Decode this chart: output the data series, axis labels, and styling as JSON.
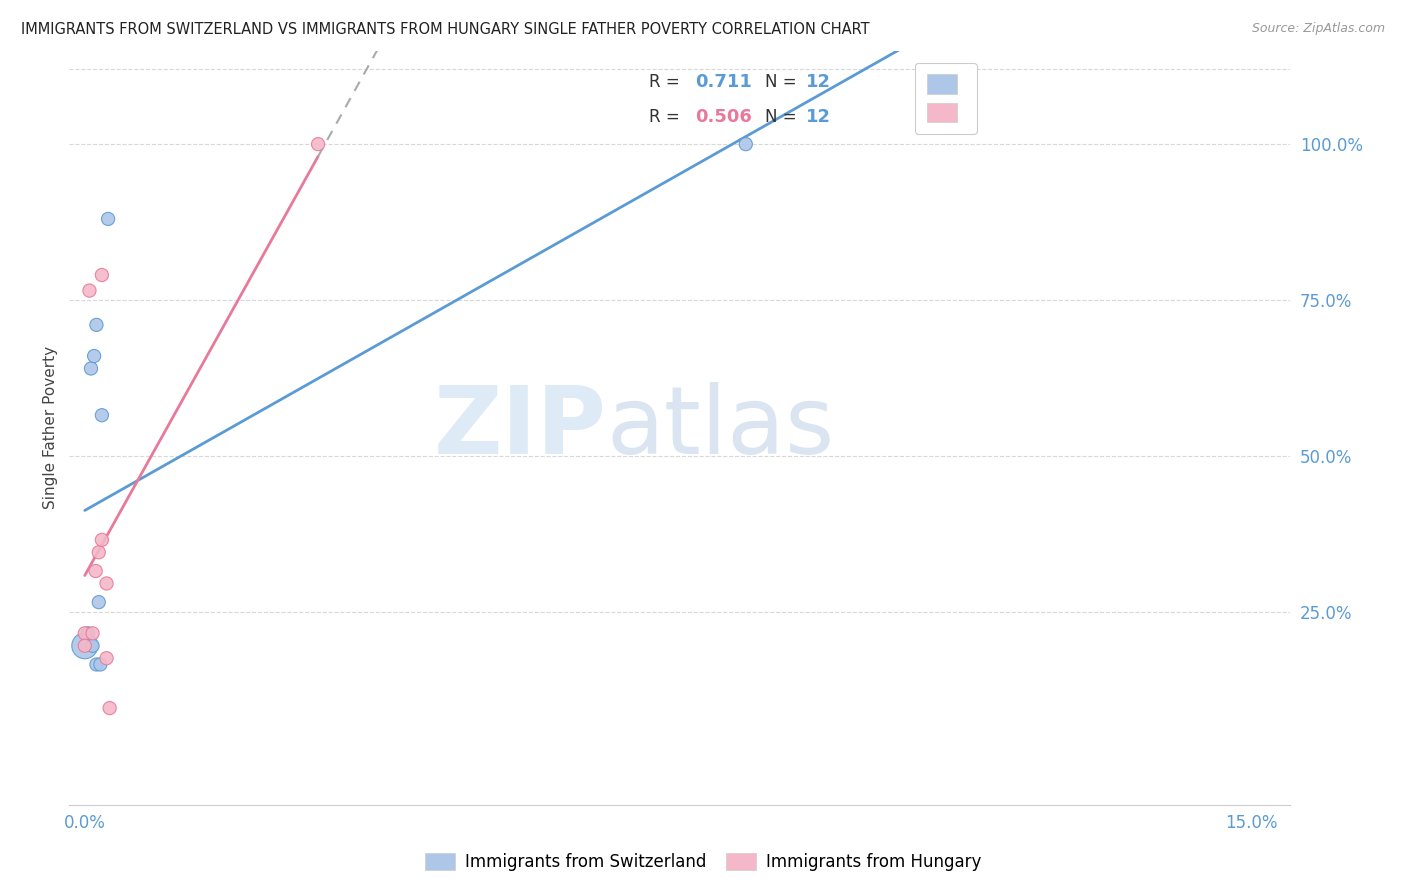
{
  "title": "IMMIGRANTS FROM SWITZERLAND VS IMMIGRANTS FROM HUNGARY SINGLE FATHER POVERTY CORRELATION CHART",
  "source": "Source: ZipAtlas.com",
  "ylabel": "Single Father Poverty",
  "color_swiss": "#aec6e8",
  "color_hungary": "#f4b8c8",
  "line_color_swiss": "#5b9bd5",
  "line_color_hungary": "#e8799a",
  "watermark_zip": "ZIP",
  "watermark_atlas": "atlas",
  "swiss_x": [
    0.0,
    0.0004,
    0.0008,
    0.001,
    0.0012,
    0.0015,
    0.0015,
    0.0018,
    0.002,
    0.0022,
    0.003,
    0.085
  ],
  "swiss_y": [
    0.195,
    0.215,
    0.64,
    0.195,
    0.66,
    0.71,
    0.165,
    0.265,
    0.165,
    0.565,
    0.88,
    1.0
  ],
  "swiss_size": [
    350,
    90,
    90,
    90,
    90,
    90,
    90,
    90,
    90,
    90,
    90,
    90
  ],
  "hungary_x": [
    0.0,
    0.0,
    0.0006,
    0.001,
    0.0014,
    0.0018,
    0.0022,
    0.0022,
    0.0028,
    0.0028,
    0.0032,
    0.03
  ],
  "hungary_y": [
    0.215,
    0.195,
    0.765,
    0.215,
    0.315,
    0.345,
    0.365,
    0.79,
    0.295,
    0.175,
    0.095,
    1.0
  ],
  "hungary_size": [
    90,
    90,
    90,
    90,
    90,
    90,
    90,
    90,
    90,
    90,
    90,
    90
  ],
  "xmin": -0.002,
  "xmax": 0.155,
  "ymin": -0.06,
  "ymax": 1.15,
  "xtick_positions": [
    0.0,
    0.03,
    0.06,
    0.09,
    0.12,
    0.15
  ],
  "xtick_labels": [
    "0.0%",
    "",
    "",
    "",
    "",
    "15.0%"
  ],
  "ytick_positions": [
    0.25,
    0.5,
    0.75,
    1.0
  ],
  "ytick_labels": [
    "25.0%",
    "50.0%",
    "75.0%",
    "100.0%"
  ],
  "r_swiss": "0.711",
  "r_hungary": "0.506",
  "n_swiss": "12",
  "n_hungary": "12"
}
